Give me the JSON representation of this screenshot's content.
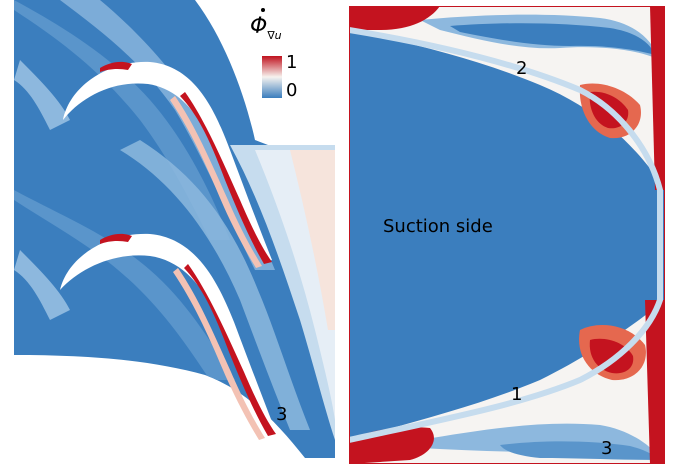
{
  "legend": {
    "title_symbol": "Φ",
    "title_subscript": "∇u",
    "max_label": "1",
    "min_label": "0",
    "colors": {
      "high": "#c0121e",
      "mid": "#f7f3ef",
      "low": "#3a7dbd"
    }
  },
  "annotations": {
    "suction_side": "Suction side",
    "region_1": "1",
    "region_2": "2",
    "region_3_right": "3",
    "region_3_left": "3"
  },
  "palette": {
    "deep_blue": "#3b7ebe",
    "mid_blue": "#5a95cb",
    "light_blue": "#8db8de",
    "pale_blue": "#c6dcee",
    "white": "#f6f4f2",
    "pale_red": "#f3c2b4",
    "orange_red": "#e5684f",
    "red": "#c4131f"
  }
}
